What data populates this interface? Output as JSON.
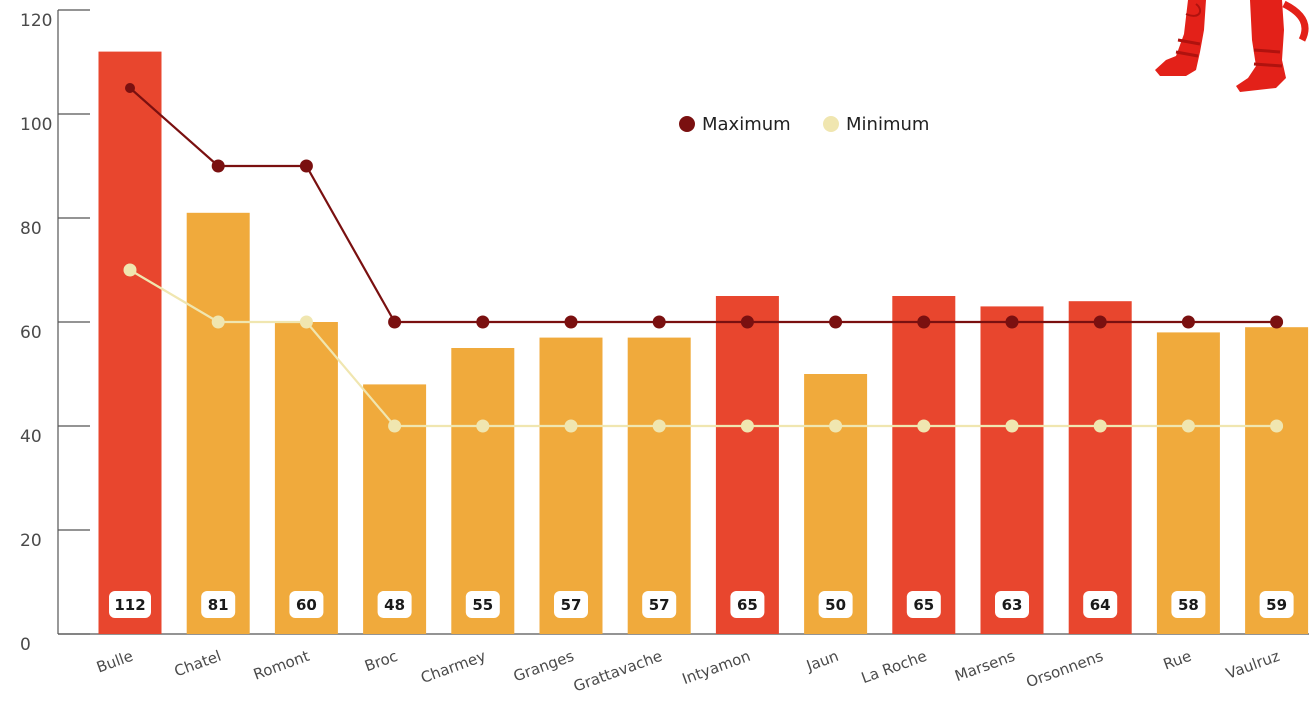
{
  "chart_data": {
    "type": "bar",
    "categories": [
      "Bulle",
      "Chatel",
      "Romont",
      "Broc",
      "Charmey",
      "Granges",
      "Grattavache",
      "Intyamon",
      "Jaun",
      "La Roche",
      "Marsens",
      "Orsonnens",
      "Rue",
      "Vaulruz"
    ],
    "values": [
      112,
      81,
      60,
      48,
      55,
      57,
      57,
      65,
      50,
      65,
      63,
      64,
      58,
      59
    ],
    "highlighted": [
      true,
      false,
      false,
      false,
      false,
      false,
      false,
      true,
      false,
      true,
      true,
      true,
      false,
      false
    ],
    "lines": [
      {
        "name": "Maximum",
        "values": [
          105,
          90,
          90,
          60,
          60,
          60,
          60,
          60,
          60,
          60,
          60,
          60,
          60,
          60
        ],
        "color": "#7a1010"
      },
      {
        "name": "Minimum",
        "values": [
          70,
          60,
          60,
          40,
          40,
          40,
          40,
          40,
          40,
          40,
          40,
          40,
          40,
          40
        ],
        "color": "#f0e6b0"
      }
    ],
    "yticks": [
      0,
      20,
      40,
      60,
      80,
      100,
      120
    ],
    "ylim": [
      0,
      120
    ],
    "legend_position": "top-center",
    "colors": {
      "bar_highlight": "#e8462e",
      "bar_default": "#f0aa3c",
      "axis": "#555555"
    }
  },
  "legend": {
    "maximum": "Maximum",
    "minimum": "Minimum"
  },
  "decoration": {
    "icon": "devil-legs-icon"
  }
}
